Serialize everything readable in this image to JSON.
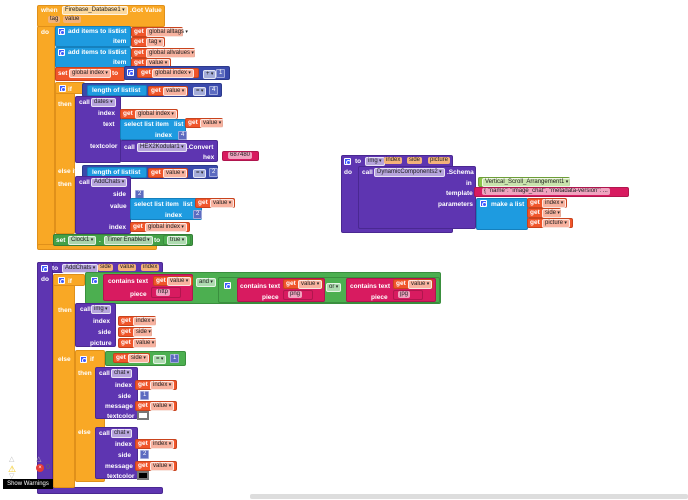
{
  "lbl": {
    "when": "when",
    "do": "do",
    "get": "get",
    "add_items": "add items to list",
    "list": "list",
    "item": "item",
    "set": "set",
    "to": "to",
    "if": "if",
    "then": "then",
    "else_if": "else if",
    "else": "else",
    "length_of_list": "length of list",
    "call": "call",
    "index": "index",
    "text": "text",
    "select_list_item": "select list item",
    "textcolor": "textcolor",
    "hex": "hex",
    "side": "side",
    "value": "value",
    "in": "in",
    "template": "template",
    "parameters": "parameters",
    "make_a_list": "make a list",
    "contains_text": "contains text",
    "piece": "piece",
    "message": "message",
    "picture": "picture",
    "dot": "."
  },
  "event": {
    "component": "Firebase_Database1",
    "name": ".Got Value",
    "params": [
      "tag",
      "value"
    ]
  },
  "vars": {
    "alltags": "global alltags",
    "allvalues": "global allvalues",
    "index": "global index",
    "tag": "tag",
    "value": "value",
    "side": "side",
    "picture": "picture",
    "index_param": "index"
  },
  "ops": {
    "plus": "+",
    "eq": "=",
    "and": "and",
    "or": "or"
  },
  "nums": {
    "one": "1",
    "two": "2",
    "four": "4"
  },
  "calls": {
    "dates": "dates",
    "hex2k": "HEX2Kodular1",
    "convert": ".Convert",
    "hex_value": "687480",
    "addchats": "AddChats",
    "img": "img",
    "chat": "chat",
    "dyn": "DynamicComponents2",
    "schema": ".Schema"
  },
  "clock": {
    "component": "Clock1",
    "property": "Timer Enabled",
    "value": "true"
  },
  "img_proc": {
    "name": "img",
    "params": [
      "index",
      "side",
      "picture"
    ],
    "in_value": "Vertical_Scroll_Arrangement1",
    "template": "{ \"name\": \"image_chat\", \"metadata-version\": ..."
  },
  "addchats_proc": {
    "name": "AddChats",
    "params": [
      "side",
      "value",
      "index"
    ]
  },
  "strings": {
    "http": "http",
    "png": "png",
    "jpg": "jpg"
  },
  "colors": {
    "textcolor_white": "#ffffff",
    "textcolor_black": "#000000"
  },
  "warnings": {
    "show_label": "Show Warnings",
    "error_count": "0"
  }
}
